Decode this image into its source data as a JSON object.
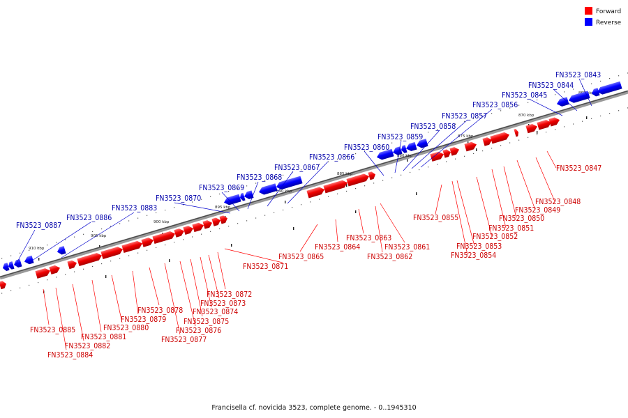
{
  "legend": {
    "forward_label": "Forward",
    "reverse_label": "Reverse",
    "forward_color": "#ff0000",
    "reverse_color": "#0000ff"
  },
  "caption": "Francisella cf. novicida 3523, complete genome. - 0..1945310",
  "ticks": [
    {
      "label": "865 kbp",
      "kbp": 865
    },
    {
      "label": "870 kbp",
      "kbp": 870
    },
    {
      "label": "875 kbp",
      "kbp": 875
    },
    {
      "label": "880 kbp",
      "kbp": 880
    },
    {
      "label": "885 kbp",
      "kbp": 885
    },
    {
      "label": "890 kbp",
      "kbp": 890
    },
    {
      "label": "895 kbp",
      "kbp": 895
    },
    {
      "label": "900 kbp",
      "kbp": 900
    },
    {
      "label": "905 kbp",
      "kbp": 905
    },
    {
      "label": "910 kbp",
      "kbp": 910
    }
  ],
  "reverse_genes": [
    "FN3523_0843",
    "FN3523_0844",
    "FN3523_0845",
    "FN3523_0856",
    "FN3523_0857",
    "FN3523_0858",
    "FN3523_0859",
    "FN3523_0860",
    "FN3523_0866",
    "FN3523_0867",
    "FN3523_0868",
    "FN3523_0869",
    "FN3523_0870",
    "FN3523_0883",
    "FN3523_0886",
    "FN3523_0887"
  ],
  "forward_genes": [
    "FN3523_0847",
    "FN3523_0848",
    "FN3523_0849",
    "FN3523_0850",
    "FN3523_0851",
    "FN3523_0852",
    "FN3523_0853",
    "FN3523_0854",
    "FN3523_0855",
    "FN3523_0861",
    "FN3523_0862",
    "FN3523_0863",
    "FN3523_0864",
    "FN3523_0865",
    "FN3523_0871",
    "FN3523_0872",
    "FN3523_0873",
    "FN3523_0874",
    "FN3523_0875",
    "FN3523_0876",
    "FN3523_0877",
    "FN3523_0878",
    "FN3523_0879",
    "FN3523_0880",
    "FN3523_0881",
    "FN3523_0882",
    "FN3523_0884",
    "FN3523_0885"
  ]
}
